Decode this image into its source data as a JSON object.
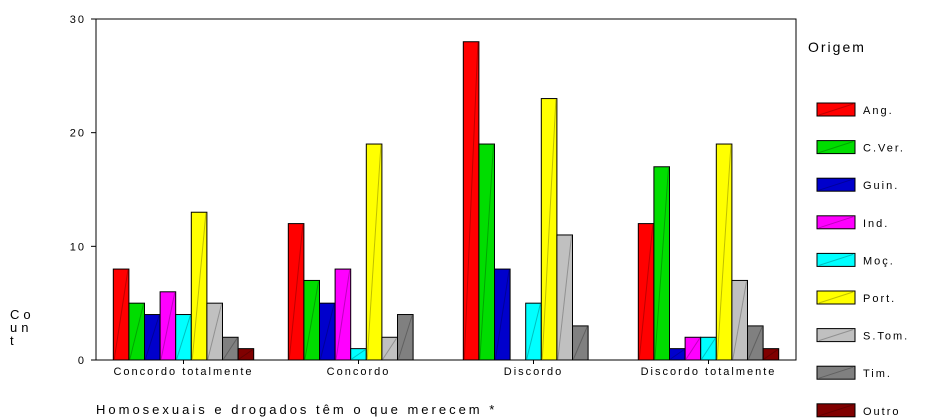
{
  "chart_data": {
    "type": "bar",
    "xlabel": "Homosexuais e drogados têm o que merecem *",
    "ylabel": "Count",
    "ylim": [
      0,
      30
    ],
    "yticks": [
      0,
      10,
      20,
      30
    ],
    "grid": false,
    "legend_title": "Origem",
    "legend_position": "right",
    "categories": [
      "Concordo totalmente",
      "Concordo",
      "Discordo",
      "Discordo totalmente"
    ],
    "series": [
      {
        "name": "Ang.",
        "color": "#ff0000",
        "values": [
          8,
          12,
          28,
          12
        ]
      },
      {
        "name": "C.Ver.",
        "color": "#00dd00",
        "values": [
          5,
          7,
          19,
          17
        ]
      },
      {
        "name": "Guin.",
        "color": "#0000cc",
        "values": [
          4,
          5,
          8,
          1
        ]
      },
      {
        "name": "Ind.",
        "color": "#ff00ff",
        "values": [
          6,
          8,
          0,
          2
        ]
      },
      {
        "name": "Moç.",
        "color": "#00ffff",
        "values": [
          4,
          1,
          5,
          2
        ]
      },
      {
        "name": "Port.",
        "color": "#ffff00",
        "values": [
          13,
          19,
          23,
          19
        ]
      },
      {
        "name": "S.Tom.",
        "color": "#c0c0c0",
        "values": [
          5,
          2,
          11,
          7
        ]
      },
      {
        "name": "Tim.",
        "color": "#808080",
        "values": [
          2,
          4,
          3,
          3
        ]
      },
      {
        "name": "Outro",
        "color": "#800000",
        "values": [
          1,
          0,
          0,
          1
        ]
      }
    ]
  }
}
